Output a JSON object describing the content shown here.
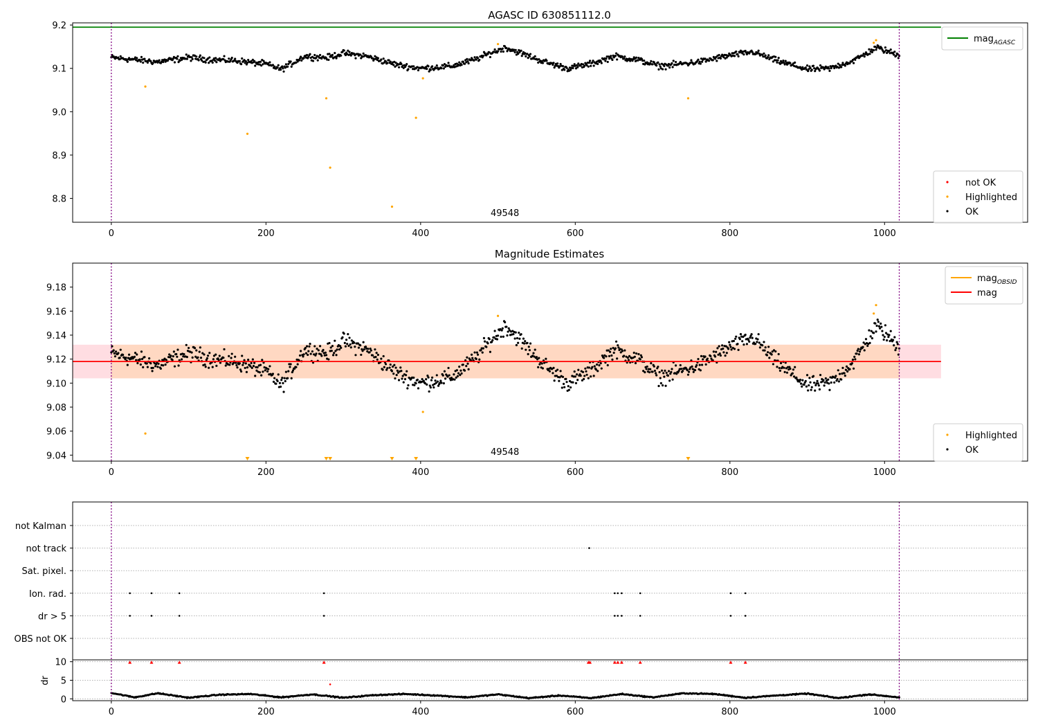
{
  "chart_data": [
    {
      "type": "scatter",
      "title": "AGASC ID 630851112.0",
      "xlabel": "",
      "ylabel": "",
      "xlim": [
        -50,
        1185
      ],
      "ylim": [
        8.745,
        9.205
      ],
      "x_ticks": [
        "0",
        "200",
        "400",
        "600",
        "800",
        "1000"
      ],
      "y_ticks": [
        "8.8",
        "8.9",
        "9.0",
        "9.1",
        "9.2"
      ],
      "x_tick_values": [
        0,
        200,
        400,
        600,
        800,
        1000
      ],
      "y_tick_values": [
        8.8,
        8.9,
        9.0,
        9.1,
        9.2
      ],
      "annotation": "49548",
      "annotation_x": 509,
      "vlines": [
        0,
        1019
      ],
      "hline": {
        "name": "mag_AGASC",
        "y": 9.195,
        "x_range": [
          -50,
          1073
        ],
        "color": "#008000"
      },
      "legend_top": {
        "placement": "top-right",
        "entries": [
          {
            "label": "mag",
            "sub": "AGASC",
            "color": "#008000",
            "kind": "line"
          }
        ]
      },
      "legend_bottom": {
        "placement": "bottom-right",
        "entries": [
          {
            "label": "not OK",
            "color": "#ff0000",
            "kind": "dot"
          },
          {
            "label": "Highlighted",
            "color": "#ffa500",
            "kind": "dot"
          },
          {
            "label": "OK",
            "color": "#000000",
            "kind": "dot"
          }
        ]
      },
      "ok_series": {
        "name": "OK",
        "color": "#000000",
        "count": 1020,
        "x_start": 0,
        "x_end": 1019,
        "knots_x": [
          0,
          60,
          100,
          130,
          160,
          200,
          220,
          250,
          280,
          300,
          330,
          370,
          400,
          440,
          470,
          490,
          510,
          530,
          560,
          590,
          620,
          650,
          680,
          710,
          760,
          800,
          830,
          860,
          900,
          930,
          960,
          990,
          1019
        ],
        "knots_y": [
          9.125,
          9.115,
          9.125,
          9.12,
          9.118,
          9.11,
          9.098,
          9.128,
          9.125,
          9.135,
          9.128,
          9.108,
          9.1,
          9.105,
          9.12,
          9.135,
          9.148,
          9.135,
          9.115,
          9.1,
          9.11,
          9.128,
          9.12,
          9.105,
          9.115,
          9.13,
          9.138,
          9.118,
          9.098,
          9.1,
          9.118,
          9.148,
          9.13
        ],
        "noise": 0.006
      },
      "highlighted": {
        "name": "Highlighted",
        "color": "#ffa500",
        "x": [
          44,
          176,
          278,
          283,
          363,
          394,
          403,
          500,
          746,
          986,
          989
        ],
        "y": [
          9.058,
          8.949,
          9.031,
          8.871,
          8.781,
          8.986,
          9.077,
          9.156,
          9.031,
          9.159,
          9.165
        ]
      }
    },
    {
      "type": "scatter",
      "title": "Magnitude Estimates",
      "xlabel": "",
      "ylabel": "",
      "xlim": [
        -50,
        1185
      ],
      "ylim": [
        9.035,
        9.2
      ],
      "x_ticks": [
        "0",
        "200",
        "400",
        "600",
        "800",
        "1000"
      ],
      "y_ticks": [
        "9.04",
        "9.06",
        "9.08",
        "9.10",
        "9.12",
        "9.14",
        "9.16",
        "9.18"
      ],
      "x_tick_values": [
        0,
        200,
        400,
        600,
        800,
        1000
      ],
      "y_tick_values": [
        9.04,
        9.06,
        9.08,
        9.1,
        9.12,
        9.14,
        9.16,
        9.18
      ],
      "annotation": "49548",
      "annotation_x": 509,
      "vlines": [
        0,
        1019
      ],
      "mag_line": {
        "name": "mag",
        "y": 9.118,
        "x_range": [
          -50,
          1073
        ],
        "color": "#ff0000"
      },
      "band_outer": {
        "y": [
          9.104,
          9.132
        ],
        "x_range": [
          -50,
          1073
        ],
        "color": "#ffdde2"
      },
      "band_inner": {
        "y": [
          9.104,
          9.132
        ],
        "x_range": [
          0,
          1019
        ],
        "color": "#ffd8c2"
      },
      "legend_top": {
        "placement": "top-right",
        "entries": [
          {
            "label": "mag",
            "sub": "OBSID",
            "color": "#ffa500",
            "kind": "line"
          },
          {
            "label": "mag",
            "sub": "",
            "color": "#ff0000",
            "kind": "line"
          }
        ]
      },
      "legend_bottom": {
        "placement": "bottom-right",
        "entries": [
          {
            "label": "Highlighted",
            "color": "#ffa500",
            "kind": "dot"
          },
          {
            "label": "OK",
            "color": "#000000",
            "kind": "dot"
          }
        ]
      },
      "highlighted": {
        "name": "Highlighted",
        "color": "#ffa500",
        "x": [
          44,
          403,
          500,
          986,
          989
        ],
        "y": [
          9.058,
          9.076,
          9.156,
          9.158,
          9.165
        ]
      },
      "clipped_markers": {
        "color": "#ffa500",
        "x": [
          176,
          278,
          283,
          363,
          394,
          746
        ]
      }
    },
    {
      "type": "scatter",
      "title": "",
      "xlabel": "",
      "ylabel": "dr",
      "xlim": [
        -50,
        1185
      ],
      "x_ticks": [
        "0",
        "200",
        "400",
        "600",
        "800",
        "1000"
      ],
      "x_tick_values": [
        0,
        200,
        400,
        600,
        800,
        1000
      ],
      "vlines": [
        0,
        1019
      ],
      "flag_rows": [
        "not Kalman",
        "not track",
        "Sat. pixel.",
        "Ion. rad.",
        "dr > 5",
        "OBS not OK"
      ],
      "flags": {
        "not track": [
          618
        ],
        "Ion. rad.": [
          24,
          52,
          88,
          275,
          651,
          655,
          660,
          684,
          801,
          820
        ],
        "dr > 5": [
          24,
          52,
          88,
          275,
          651,
          655,
          660,
          684,
          801,
          820
        ]
      },
      "dr_ylim": [
        -0.5,
        10.5
      ],
      "dr_ticks": [
        "0",
        "5",
        "10"
      ],
      "dr_tick_values": [
        0,
        5,
        10
      ],
      "dr_clipped_markers": {
        "color": "#ff0000",
        "x": [
          24,
          52,
          88,
          275,
          617,
          619,
          651,
          655,
          660,
          684,
          801,
          820
        ]
      },
      "dr_outlier": {
        "x": 283,
        "y": 3.9,
        "color": "#ff0000"
      },
      "dr_series": {
        "name": "dr",
        "color": "#000000",
        "x_start": 0,
        "x_end": 1019,
        "count": 1020,
        "knots_x": [
          0,
          30,
          60,
          100,
          140,
          180,
          220,
          260,
          300,
          340,
          380,
          420,
          460,
          500,
          540,
          580,
          620,
          660,
          700,
          740,
          780,
          820,
          860,
          900,
          940,
          980,
          1019
        ],
        "knots_y": [
          1.6,
          0.4,
          1.5,
          0.3,
          1.1,
          1.3,
          0.4,
          1.2,
          0.3,
          1.0,
          1.3,
          0.9,
          0.4,
          1.2,
          0.2,
          0.9,
          0.2,
          1.3,
          0.4,
          1.5,
          1.3,
          0.3,
          0.9,
          1.4,
          0.2,
          1.2,
          0.4
        ]
      }
    }
  ]
}
